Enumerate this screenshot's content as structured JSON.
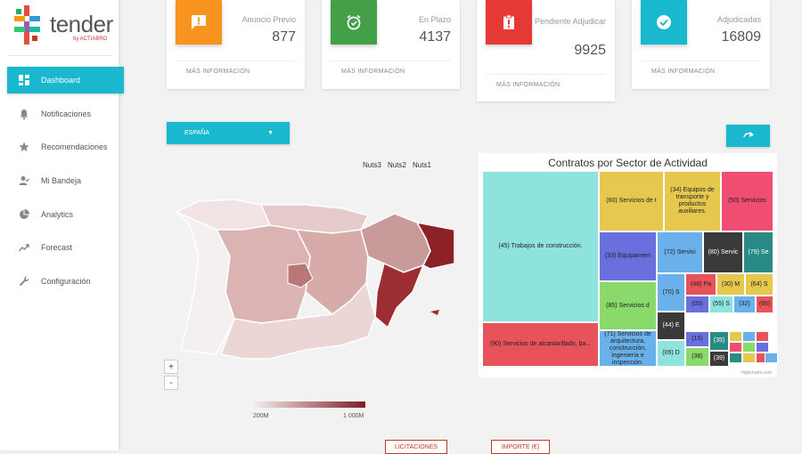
{
  "app": {
    "logo_text": "tender",
    "logo_sub": "by ACTIABRO"
  },
  "sidebar": {
    "items": [
      {
        "label": "Dashboard",
        "icon": "dashboard-icon"
      },
      {
        "label": "Notificaciones",
        "icon": "bell-icon"
      },
      {
        "label": "Recomendaciones",
        "icon": "star-icon"
      },
      {
        "label": "Mi Bandeja",
        "icon": "user-check-icon"
      },
      {
        "label": "Analytics",
        "icon": "pie-chart-icon"
      },
      {
        "label": "Forecast",
        "icon": "trending-up-icon"
      },
      {
        "label": "Configuración",
        "icon": "wrench-icon"
      }
    ]
  },
  "cards": [
    {
      "title": "Anuncio Previo",
      "value": "877",
      "more": "MÁS INFORMACIÓN",
      "color": "#f7941d",
      "icon": "exclamation-box-icon"
    },
    {
      "title": "En Plazo",
      "value": "4137",
      "more": "MÁS INFORMACIÓN",
      "color": "#43a047",
      "icon": "alarm-clock-icon"
    },
    {
      "title": "Pendiente Adjudicar",
      "value": "9925",
      "more": "MÁS INFORMACIÓN",
      "color": "#e53935",
      "icon": "clipboard-alert-icon"
    },
    {
      "title": "Adjudicadas",
      "value": "16809",
      "more": "MÁS INFORMACIÓN",
      "color": "#1ab8cf",
      "icon": "check-circle-icon"
    }
  ],
  "filter": {
    "region": "ESPAÑA"
  },
  "map": {
    "nuts": [
      "Nuts3",
      "Nuts2",
      "Nuts1"
    ],
    "zoom_in": "+",
    "zoom_out": "-",
    "legend_min": "200M",
    "legend_max": "1 000M"
  },
  "treemap": {
    "title": "Contratos por Sector de Actividad",
    "credits": "Highcharts.com",
    "cells": [
      {
        "label": "(45) Trabajos de construcción.",
        "color": "#8ee3df"
      },
      {
        "label": "(90) Servicios de alcantarillado, ba...",
        "color": "#e8525a"
      },
      {
        "label": "(60) Servicios de t",
        "color": "#e6c84f"
      },
      {
        "label": "(34) Equipos de transporte y productos auxiliares.",
        "color": "#e6c84f"
      },
      {
        "label": "(50) Servicios",
        "color": "#ef4d72"
      },
      {
        "label": "(33) Equipamien",
        "color": "#6a6fde"
      },
      {
        "label": "(72) Servici",
        "color": "#6ab0ea"
      },
      {
        "label": "(80) Servic",
        "color": "#3a3a3a"
      },
      {
        "label": "(79) Se",
        "color": "#2a8b86"
      },
      {
        "label": "(85) Servicios d",
        "color": "#89d96b"
      },
      {
        "label": "(70) S",
        "color": "#6ab0ea"
      },
      {
        "label": "(48) Pa",
        "color": "#e8525a"
      },
      {
        "label": "(30) M",
        "color": "#e6c84f"
      },
      {
        "label": "(64) S",
        "color": "#e6c84f"
      },
      {
        "label": "(71) Servicios de arquitectura, construcción, ingeniería e inspección.",
        "color": "#6ab0ea"
      },
      {
        "label": "(44) E",
        "color": "#3a3a3a"
      },
      {
        "label": "(09) D",
        "color": "#8ee3df"
      },
      {
        "label": "(00)",
        "color": "#6a6fde"
      },
      {
        "label": "(55) S",
        "color": "#8ee3df"
      },
      {
        "label": "(32)",
        "color": "#6ab0ea"
      },
      {
        "label": "(65)",
        "color": "#e8525a"
      },
      {
        "label": "(15)",
        "color": "#6a6fde"
      },
      {
        "label": "(38)",
        "color": "#89d96b"
      },
      {
        "label": "(35)",
        "color": "#2a8b86"
      },
      {
        "label": "(39)",
        "color": "#3a3a3a"
      }
    ]
  },
  "bottom_tabs": [
    "LICITACIONES",
    "IMPORTE (€)"
  ]
}
